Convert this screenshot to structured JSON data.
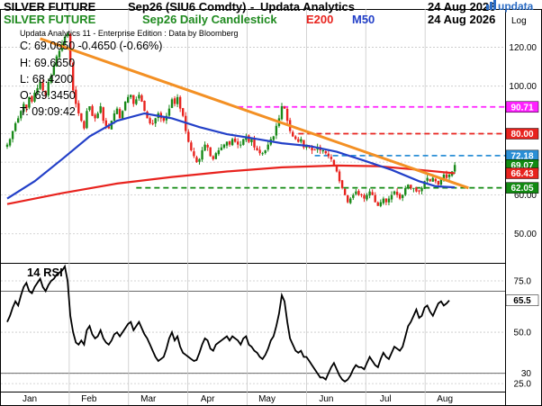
{
  "header": {
    "instrument": "SILVER FUTURE",
    "contract": "Sep26 (SIU6 Comdty)",
    "separator": "-",
    "publisher": "Updata Analytics",
    "subtitle": "Sep26 Daily Candlestick",
    "ema_label": "E200",
    "ma_label": "M50",
    "date": "24 Aug 2026",
    "logo_text": "updata",
    "scale_label": "Log"
  },
  "info": {
    "source": "Updata Analytics 11 - Enterprise Edition : Data by Bloomberg",
    "close": "C: 69.0650  -0.4650 (-0.66%)",
    "high": "H: 69.6650",
    "low": "L: 68.4200",
    "open": "O: 69.3450",
    "time": "T: 09:09:42"
  },
  "rsi_panel": {
    "label": "14 RSI"
  },
  "colors": {
    "ema": "#e8231e",
    "ma": "#2340c8",
    "trendline": "#f39024",
    "resistance_magenta": "#ff22ff",
    "resistance_red": "#e8231e",
    "level_cyan": "#2b8fd6",
    "support_green": "#128a12",
    "up_candle": "#1a8a1a",
    "down_candle": "#e8231e",
    "green_text": "#1f8a1f",
    "blue_text": "#2340c8",
    "red_text": "#e8231e"
  },
  "chart_data": [
    {
      "type": "candlestick",
      "x_unit": "trading day index (Jan 2026 – 24 Aug 2026)",
      "months": [
        "Jan",
        "Feb",
        "Mar",
        "Apr",
        "May",
        "Jun",
        "Jul",
        "Aug"
      ],
      "y_scale": "log",
      "ylim": [
        44,
        132
      ],
      "yticks": [
        "120.00",
        "100.00",
        "80.00",
        "70.00",
        "60.00",
        "50.00"
      ],
      "close_series": [
        76,
        78,
        81,
        84,
        86,
        89,
        92,
        90,
        95,
        93,
        97,
        99,
        102,
        98,
        96,
        102,
        105,
        110,
        115,
        118,
        122,
        126,
        128,
        112,
        98,
        92,
        88,
        85,
        82,
        89,
        91,
        87,
        86,
        88,
        91,
        85,
        83,
        82,
        85,
        88,
        90,
        86,
        89,
        93,
        95,
        96,
        92,
        94,
        96,
        93,
        89,
        86,
        84,
        84,
        86,
        88,
        86,
        85,
        87,
        90,
        94,
        92,
        95,
        90,
        87,
        81,
        77,
        74,
        72,
        70,
        71,
        74,
        76,
        75,
        72,
        71,
        73,
        74,
        75,
        76,
        77,
        76,
        78,
        77,
        76,
        76,
        78,
        79,
        77,
        78,
        75,
        74,
        73,
        73,
        74,
        76,
        78,
        79,
        83,
        86,
        91,
        90,
        85,
        81,
        79,
        78,
        77,
        78,
        75,
        76,
        75,
        74,
        74,
        75,
        74,
        74,
        73,
        72,
        71,
        69,
        67,
        64,
        62,
        60,
        58,
        59,
        60,
        61,
        60,
        60,
        59,
        60,
        61,
        60,
        58,
        57,
        58,
        59,
        58,
        59,
        60,
        61,
        60,
        59,
        60,
        62,
        63,
        62,
        62,
        61,
        61,
        62,
        64,
        65,
        64,
        65,
        64,
        63,
        65,
        66,
        65,
        66,
        67,
        69.07
      ],
      "ema200": [
        {
          "d": 0,
          "v": 57.5
        },
        {
          "d": 20,
          "v": 60.5
        },
        {
          "d": 40,
          "v": 63.3
        },
        {
          "d": 60,
          "v": 65.3
        },
        {
          "d": 80,
          "v": 67.0
        },
        {
          "d": 100,
          "v": 68.3
        },
        {
          "d": 120,
          "v": 68.9
        },
        {
          "d": 135,
          "v": 68.7
        },
        {
          "d": 150,
          "v": 67.5
        },
        {
          "d": 163,
          "v": 66.43
        }
      ],
      "ma50": [
        {
          "d": 0,
          "v": 59.0
        },
        {
          "d": 10,
          "v": 64
        },
        {
          "d": 20,
          "v": 71
        },
        {
          "d": 30,
          "v": 79
        },
        {
          "d": 40,
          "v": 85
        },
        {
          "d": 50,
          "v": 88
        },
        {
          "d": 60,
          "v": 86
        },
        {
          "d": 70,
          "v": 82.5
        },
        {
          "d": 80,
          "v": 79.8
        },
        {
          "d": 90,
          "v": 78.2
        },
        {
          "d": 100,
          "v": 76.5
        },
        {
          "d": 110,
          "v": 75.5
        },
        {
          "d": 120,
          "v": 73.5
        },
        {
          "d": 130,
          "v": 70.5
        },
        {
          "d": 140,
          "v": 67.5
        },
        {
          "d": 150,
          "v": 64.0
        },
        {
          "d": 156,
          "v": 62.5
        },
        {
          "d": 163,
          "v": 62.2
        }
      ],
      "trendline": [
        {
          "d": 12,
          "v": 125
        },
        {
          "d": 168,
          "v": 62
        }
      ],
      "levels": [
        {
          "label": "90.71",
          "value": 90.71,
          "color": "#ff22ff",
          "from": 84
        },
        {
          "label": "80.00",
          "value": 80.0,
          "color": "#e8231e",
          "from": 106
        },
        {
          "label": "72.18",
          "value": 72.18,
          "color": "#2b8fd6",
          "from": 112
        },
        {
          "label": "62.05",
          "value": 62.05,
          "color": "#128a12",
          "from": 47
        }
      ],
      "right_labels": [
        {
          "label": "69.07",
          "value": 69.07,
          "color": "#128a12"
        },
        {
          "label": "66.43",
          "value": 66.43,
          "color": "#e8231e"
        }
      ]
    },
    {
      "type": "line",
      "name": "14 RSI",
      "ylim": [
        22,
        82
      ],
      "yticks": [
        "75.0",
        "50.0",
        "30",
        "25.0"
      ],
      "levels": [
        70,
        30
      ],
      "values": [
        55,
        58,
        62,
        65,
        63,
        68,
        72,
        74,
        70,
        69,
        72,
        74,
        76,
        72,
        70,
        73,
        75,
        76,
        78,
        79,
        80,
        82,
        75,
        58,
        50,
        45,
        44,
        46,
        44,
        51,
        53,
        49,
        47,
        48,
        51,
        47,
        45,
        44,
        46,
        49,
        50,
        48,
        50,
        52,
        54,
        55,
        51,
        53,
        55,
        52,
        49,
        47,
        44,
        41,
        38,
        36,
        37,
        38,
        42,
        47,
        50,
        46,
        48,
        43,
        40,
        39,
        38,
        37,
        36,
        36.5,
        40,
        44,
        47,
        46,
        42,
        41,
        44,
        45,
        46,
        47,
        48,
        46,
        48,
        47,
        46,
        44,
        47,
        48,
        44,
        43,
        41,
        40,
        38,
        37,
        39,
        42,
        46,
        48,
        53,
        59,
        68,
        65,
        55,
        47,
        44,
        41,
        40,
        41,
        38,
        38,
        36,
        34,
        32,
        30,
        28,
        28,
        27,
        30,
        33,
        35,
        32,
        29,
        27,
        26,
        27,
        29,
        32,
        34,
        33,
        33,
        32,
        35,
        38,
        36,
        34,
        33,
        37,
        40,
        38,
        37,
        40,
        43,
        42,
        41,
        43,
        48,
        53,
        55,
        58,
        61,
        57,
        58,
        62,
        63,
        60,
        58,
        61,
        64,
        65,
        63,
        64,
        65.5
      ],
      "current_label": "65.5"
    }
  ]
}
